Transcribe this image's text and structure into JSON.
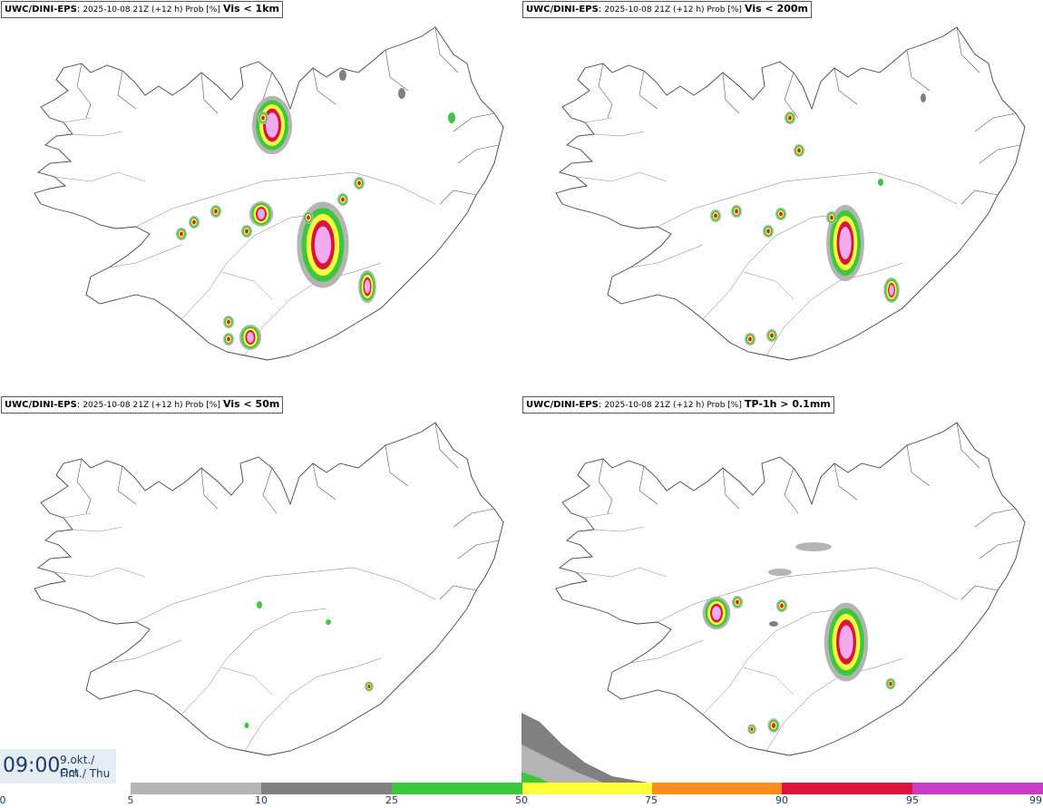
{
  "panels": [
    {
      "model": "UWC/DINI-EPS",
      "meta": "2025-10-08 21Z (+12 h) Prob [%]",
      "param": "Vis < 1km"
    },
    {
      "model": "UWC/DINI-EPS",
      "meta": "2025-10-08 21Z (+12 h) Prob [%]",
      "param": "Vis < 200m"
    },
    {
      "model": "UWC/DINI-EPS",
      "meta": "2025-10-08 21Z (+12 h) Prob [%]",
      "param": "Vis < 50m"
    },
    {
      "model": "UWC/DINI-EPS",
      "meta": "2025-10-08 21Z (+12 h) Prob [%]",
      "param": "TP-1h > 0.1mm"
    }
  ],
  "valid_time": {
    "time": "09:00",
    "date_line": "9.okt./ Oct",
    "day_line": "Fim./ Thu"
  },
  "colorbar": {
    "ticks": [
      "0",
      "5",
      "10",
      "25",
      "50",
      "75",
      "90",
      "95",
      "99"
    ],
    "colors": [
      "#b4b4b4",
      "#808080",
      "#3cc83c",
      "#ffff3c",
      "#ff8c1e",
      "#dc143c",
      "#c83cc8",
      "#f0aaf0"
    ]
  }
}
